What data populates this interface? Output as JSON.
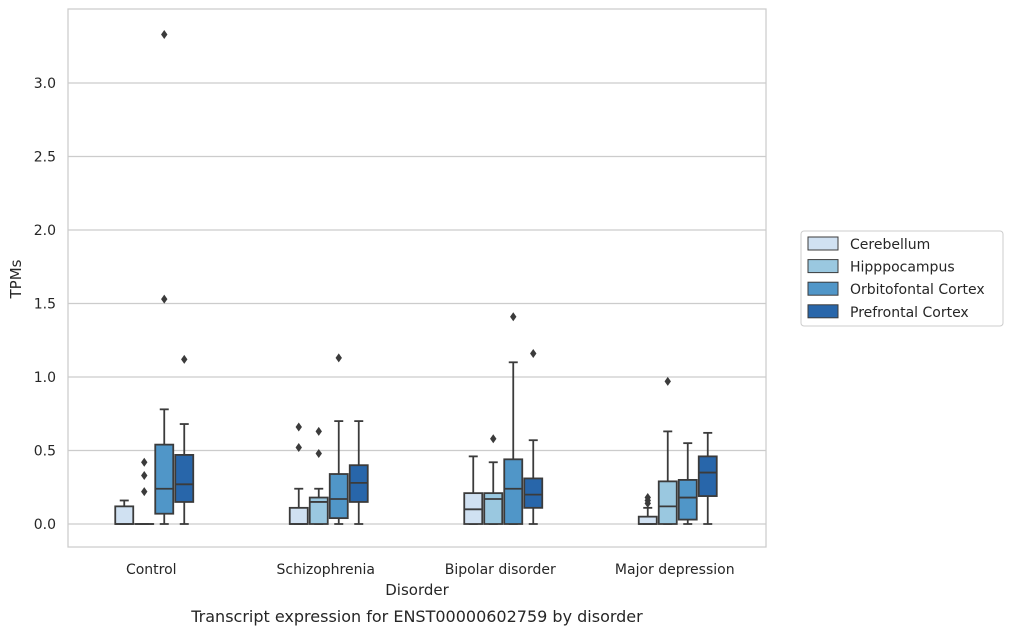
{
  "chart_data": {
    "type": "box",
    "xlabel": "Disorder",
    "ylabel": "TPMs",
    "caption": "Transcript expression for ENST00000602759 by disorder",
    "ylim": [
      -0.16,
      3.5
    ],
    "yticks": [
      "0.0",
      "0.5",
      "1.0",
      "1.5",
      "2.0",
      "2.5",
      "3.0"
    ],
    "grid": "horizontal",
    "legend_position": "right",
    "categories": [
      "Control",
      "Schizophrenia",
      "Bipolar disorder",
      "Major depression"
    ],
    "series": [
      {
        "name": "Cerebellum",
        "color": "#d0e1f2",
        "boxes": [
          {
            "whisker_low": 0.0,
            "q1": 0.0,
            "median": 0.0,
            "q3": 0.12,
            "whisker_high": 0.16,
            "outliers": []
          },
          {
            "whisker_low": 0.0,
            "q1": 0.0,
            "median": 0.0,
            "q3": 0.11,
            "whisker_high": 0.24,
            "outliers": [
              0.66,
              0.52
            ]
          },
          {
            "whisker_low": 0.0,
            "q1": 0.0,
            "median": 0.1,
            "q3": 0.21,
            "whisker_high": 0.46,
            "outliers": []
          },
          {
            "whisker_low": 0.0,
            "q1": 0.0,
            "median": 0.0,
            "q3": 0.05,
            "whisker_high": 0.11,
            "outliers": [
              0.14,
              0.16,
              0.18
            ]
          }
        ]
      },
      {
        "name": "Hipppocampus",
        "color": "#9ac8e0",
        "boxes": [
          {
            "whisker_low": 0.0,
            "q1": 0.0,
            "median": 0.0,
            "q3": 0.0,
            "whisker_high": 0.0,
            "outliers": [
              0.42,
              0.33,
              0.22
            ]
          },
          {
            "whisker_low": 0.0,
            "q1": 0.0,
            "median": 0.15,
            "q3": 0.18,
            "whisker_high": 0.24,
            "outliers": [
              0.63,
              0.48
            ]
          },
          {
            "whisker_low": 0.0,
            "q1": 0.0,
            "median": 0.17,
            "q3": 0.21,
            "whisker_high": 0.42,
            "outliers": [
              0.58
            ]
          },
          {
            "whisker_low": 0.0,
            "q1": 0.0,
            "median": 0.12,
            "q3": 0.29,
            "whisker_high": 0.63,
            "outliers": [
              0.97
            ]
          }
        ]
      },
      {
        "name": "Orbitofontal Cortex",
        "color": "#5096c8",
        "boxes": [
          {
            "whisker_low": 0.0,
            "q1": 0.07,
            "median": 0.24,
            "q3": 0.54,
            "whisker_high": 0.78,
            "outliers": [
              3.33,
              1.53
            ]
          },
          {
            "whisker_low": 0.0,
            "q1": 0.04,
            "median": 0.17,
            "q3": 0.34,
            "whisker_high": 0.7,
            "outliers": [
              1.13
            ]
          },
          {
            "whisker_low": 0.0,
            "q1": 0.0,
            "median": 0.24,
            "q3": 0.44,
            "whisker_high": 1.1,
            "outliers": [
              1.41
            ]
          },
          {
            "whisker_low": 0.0,
            "q1": 0.03,
            "median": 0.18,
            "q3": 0.3,
            "whisker_high": 0.55,
            "outliers": []
          }
        ]
      },
      {
        "name": "Prefrontal Cortex",
        "color": "#2866aa",
        "boxes": [
          {
            "whisker_low": 0.0,
            "q1": 0.15,
            "median": 0.27,
            "q3": 0.47,
            "whisker_high": 0.68,
            "outliers": [
              1.12
            ]
          },
          {
            "whisker_low": 0.0,
            "q1": 0.15,
            "median": 0.28,
            "q3": 0.4,
            "whisker_high": 0.7,
            "outliers": []
          },
          {
            "whisker_low": 0.0,
            "q1": 0.11,
            "median": 0.2,
            "q3": 0.31,
            "whisker_high": 0.57,
            "outliers": [
              1.16
            ]
          },
          {
            "whisker_low": 0.0,
            "q1": 0.19,
            "median": 0.35,
            "q3": 0.46,
            "whisker_high": 0.62,
            "outliers": []
          }
        ]
      }
    ]
  }
}
